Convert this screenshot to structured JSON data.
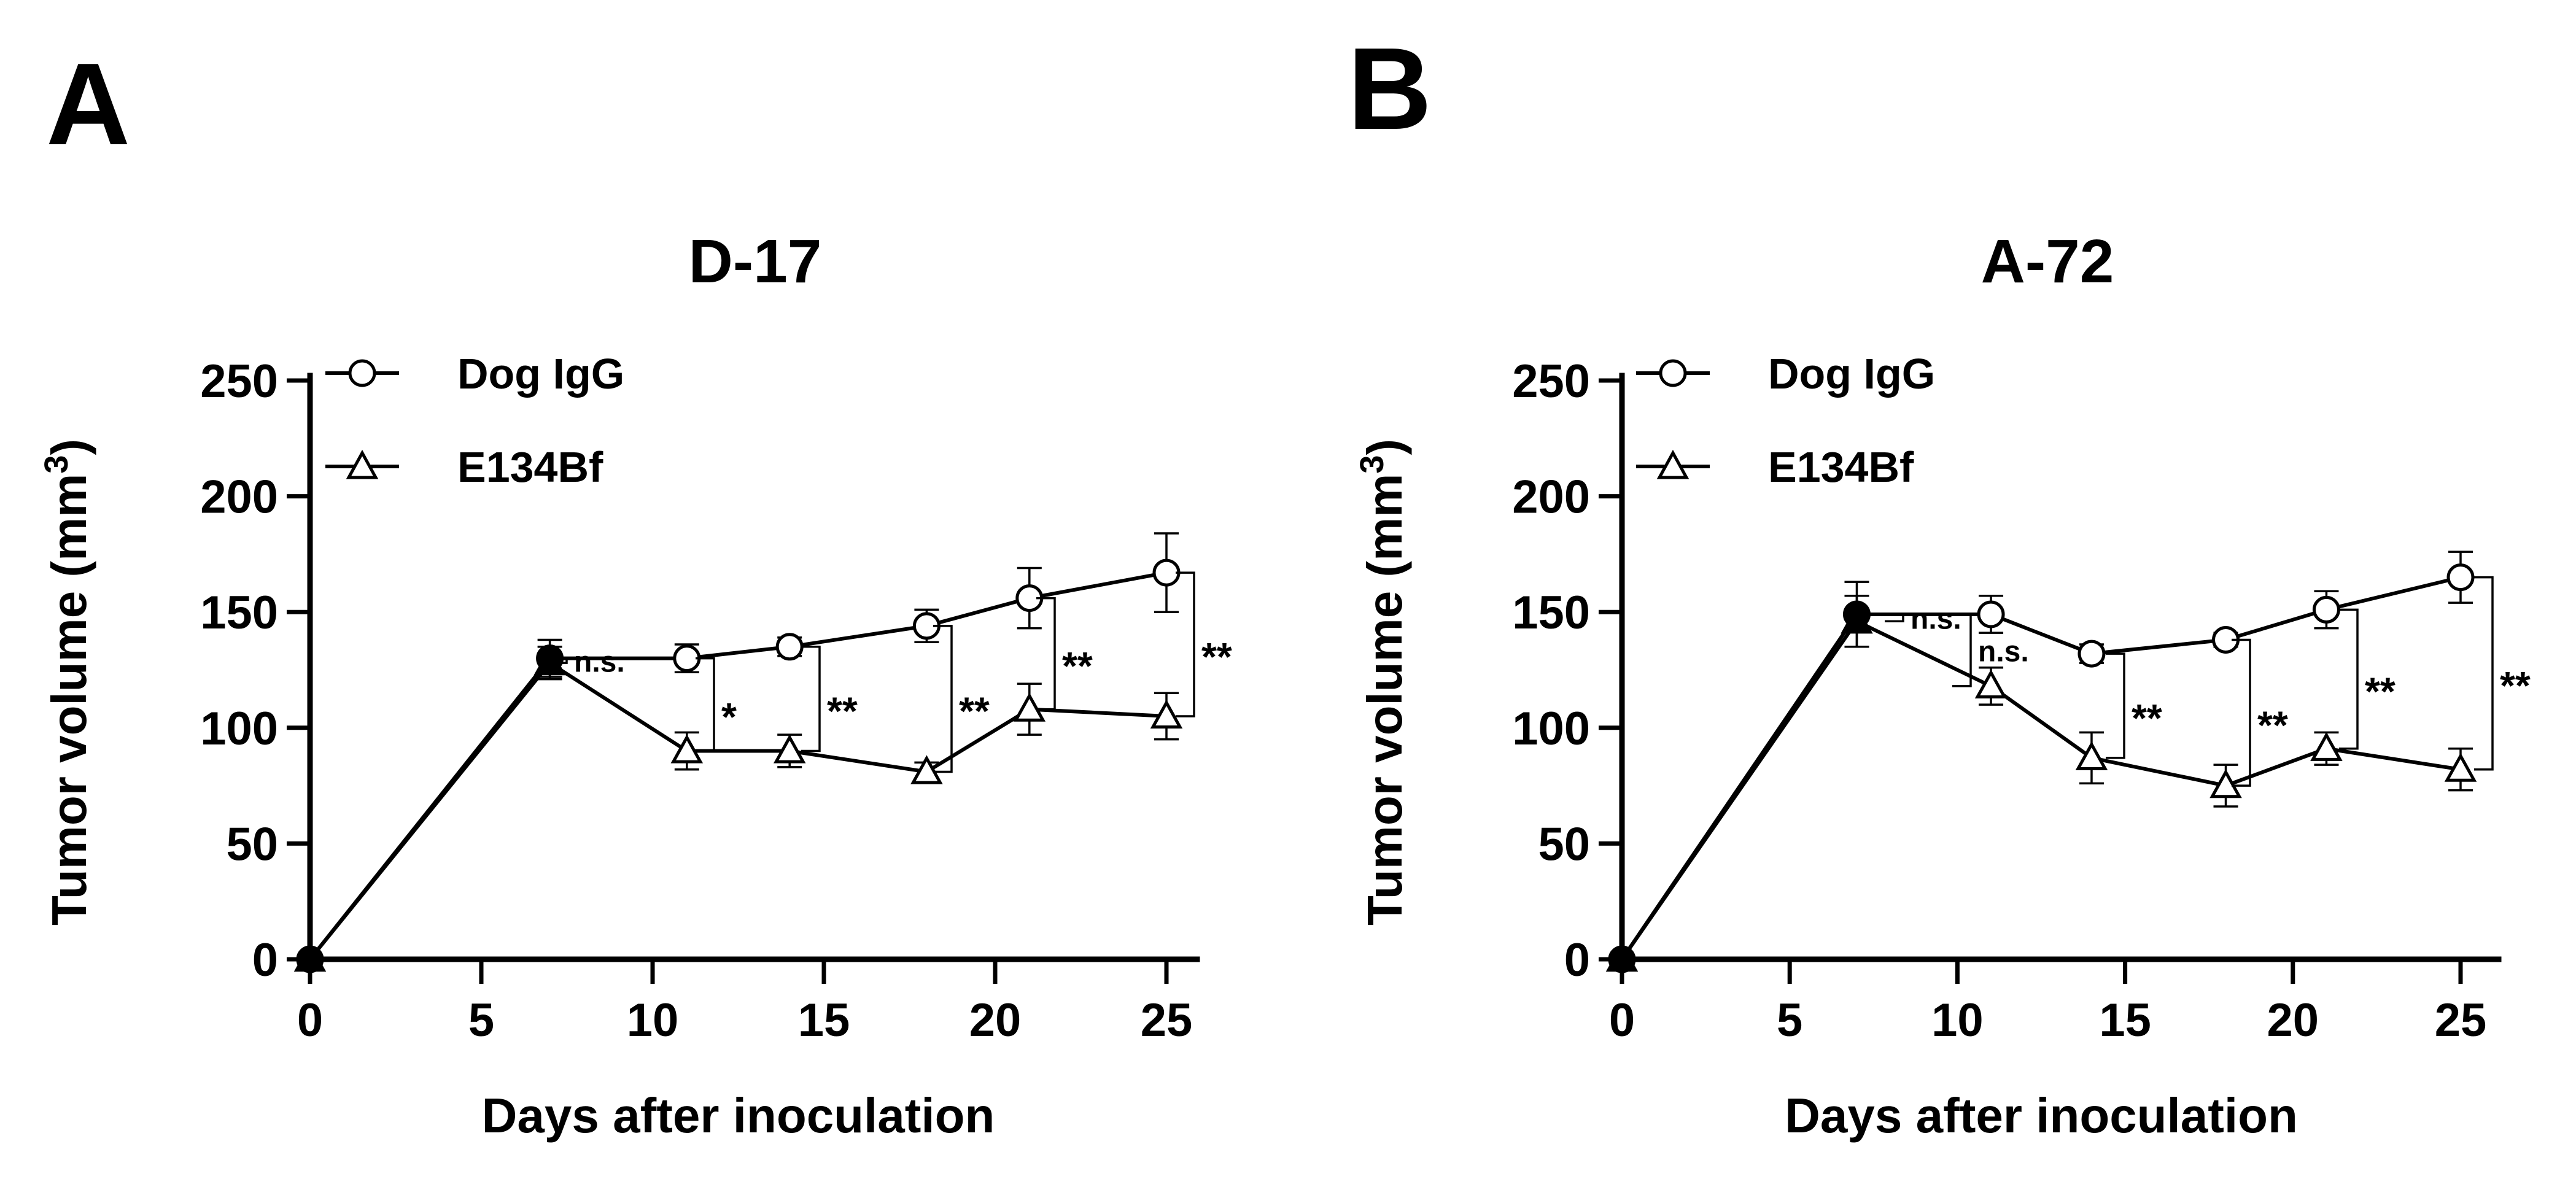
{
  "chart_data": [
    {
      "type": "line",
      "panel_label": "A",
      "title": "D-17",
      "xlabel": "Days after inoculation",
      "ylabel": "Tumor volume (mm",
      "ylabel_superscript": "3",
      "ylabel_close": ")",
      "xlim": [
        0,
        25
      ],
      "ylim": [
        0,
        250
      ],
      "xticks": [
        "0",
        "5",
        "10",
        "15",
        "20",
        "25"
      ],
      "yticks": [
        "0",
        "50",
        "100",
        "150",
        "200",
        "250"
      ],
      "series": [
        {
          "name": "Dog IgG",
          "marker": "circle",
          "x": [
            0,
            7,
            11,
            14,
            18,
            21,
            25
          ],
          "values": [
            0,
            130,
            130,
            135,
            144,
            156,
            167
          ],
          "errors": [
            0,
            8,
            6,
            4,
            7,
            13,
            17
          ]
        },
        {
          "name": "E134Bf",
          "marker": "triangle",
          "x": [
            0,
            7,
            11,
            14,
            18,
            21,
            25
          ],
          "values": [
            0,
            128,
            90,
            90,
            81,
            108,
            105
          ],
          "errors": [
            0,
            7,
            8,
            7,
            4,
            11,
            10
          ]
        }
      ],
      "annotations": [
        {
          "x": 7,
          "text": "n.s."
        },
        {
          "x": 11,
          "text": "*"
        },
        {
          "x": 14,
          "text": "**"
        },
        {
          "x": 18,
          "text": "**"
        },
        {
          "x": 21,
          "text": "**"
        },
        {
          "x": 25,
          "text": "**"
        }
      ]
    },
    {
      "type": "line",
      "panel_label": "B",
      "title": "A-72",
      "xlabel": "Days after inoculation",
      "ylabel": "Tumor volume (mm",
      "ylabel_superscript": "3",
      "ylabel_close": ")",
      "xlim": [
        0,
        25
      ],
      "ylim": [
        0,
        250
      ],
      "xticks": [
        "0",
        "5",
        "10",
        "15",
        "20",
        "25"
      ],
      "yticks": [
        "0",
        "50",
        "100",
        "150",
        "200",
        "250"
      ],
      "series": [
        {
          "name": "Dog IgG",
          "marker": "circle",
          "x": [
            0,
            7,
            11,
            14,
            18,
            21,
            25
          ],
          "values": [
            0,
            149,
            149,
            132,
            138,
            151,
            165
          ],
          "errors": [
            0,
            14,
            8,
            4,
            3,
            8,
            11
          ]
        },
        {
          "name": "E134Bf",
          "marker": "triangle",
          "x": [
            0,
            7,
            11,
            14,
            18,
            21,
            25
          ],
          "values": [
            0,
            146,
            118,
            87,
            75,
            91,
            82
          ],
          "errors": [
            0,
            11,
            8,
            11,
            9,
            7,
            9
          ]
        }
      ],
      "annotations": [
        {
          "x": 7,
          "text": "n.s."
        },
        {
          "x": 11,
          "text": "n.s."
        },
        {
          "x": 14,
          "text": "**"
        },
        {
          "x": 18,
          "text": "**"
        },
        {
          "x": 21,
          "text": "**"
        },
        {
          "x": 25,
          "text": "**"
        }
      ]
    }
  ]
}
